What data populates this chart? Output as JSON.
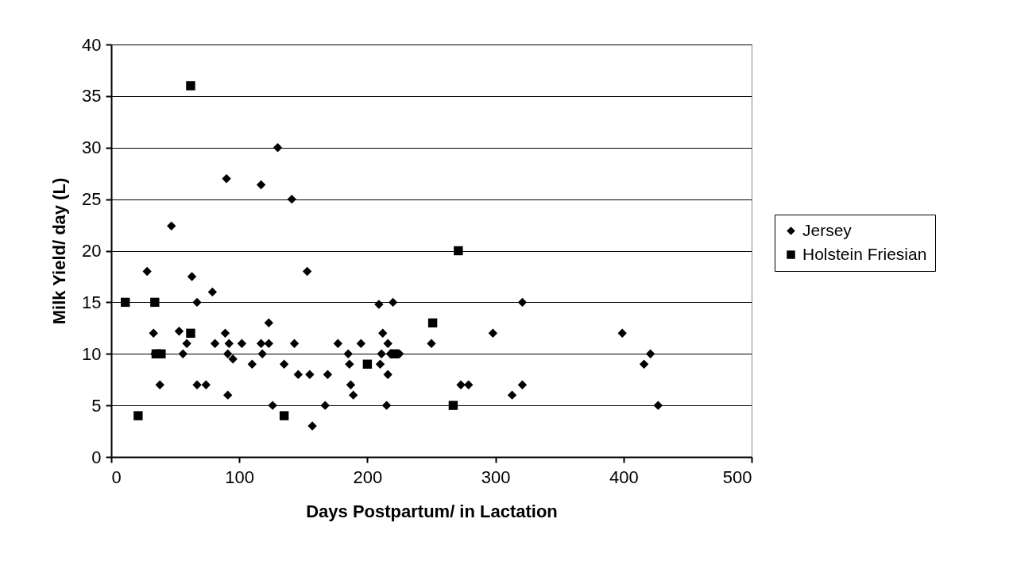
{
  "chart_data": {
    "type": "scatter",
    "xlabel": "Days Postpartum/ in Lactation",
    "ylabel": "Milk Yield/ day (L)",
    "xlim": [
      0,
      500
    ],
    "xticks": [
      0,
      100,
      200,
      300,
      400,
      500
    ],
    "ylim": [
      0,
      40
    ],
    "yticks": [
      0,
      5,
      10,
      15,
      20,
      25,
      30,
      35,
      40
    ],
    "grid": "y",
    "legend": "right",
    "series": [
      {
        "name": "Jersey",
        "color": "#000000",
        "marker": "diamond",
        "x": [
          28,
          47,
          33,
          34,
          38,
          53,
          56,
          63,
          59,
          67,
          67,
          74,
          79,
          81,
          89,
          90,
          92,
          91,
          95,
          91,
          102,
          110,
          117,
          118,
          117,
          123,
          123,
          126,
          130,
          135,
          141,
          143,
          146,
          153,
          155,
          157,
          167,
          169,
          177,
          185,
          186,
          187,
          189,
          195,
          209,
          210,
          212,
          211,
          216,
          215,
          216,
          220,
          218,
          225,
          250,
          273,
          279,
          298,
          313,
          321,
          321,
          399,
          416,
          421,
          427
        ],
        "values": [
          18,
          22.4,
          12,
          10,
          7,
          12.2,
          10,
          17.5,
          11,
          15,
          7,
          7,
          16,
          11,
          12,
          27,
          11,
          10,
          9.5,
          6,
          11,
          9,
          11,
          10,
          26.4,
          13,
          11,
          5,
          30,
          9,
          25,
          11,
          8,
          18,
          8,
          3,
          5,
          8,
          11,
          10,
          9,
          7,
          6,
          11,
          14.8,
          9,
          12,
          10,
          11,
          5,
          8,
          15,
          10,
          10,
          11,
          7,
          7,
          12,
          6,
          15,
          7,
          12,
          9,
          10,
          5
        ]
      },
      {
        "name": "Holstein Friesian",
        "color": "#000000",
        "marker": "square",
        "x": [
          11,
          21,
          34,
          35,
          39,
          62,
          62,
          135,
          200,
          221,
          251,
          271,
          267
        ],
        "values": [
          15,
          4,
          15,
          10,
          10,
          36,
          12,
          4,
          9,
          10,
          13,
          20,
          5
        ]
      }
    ]
  }
}
